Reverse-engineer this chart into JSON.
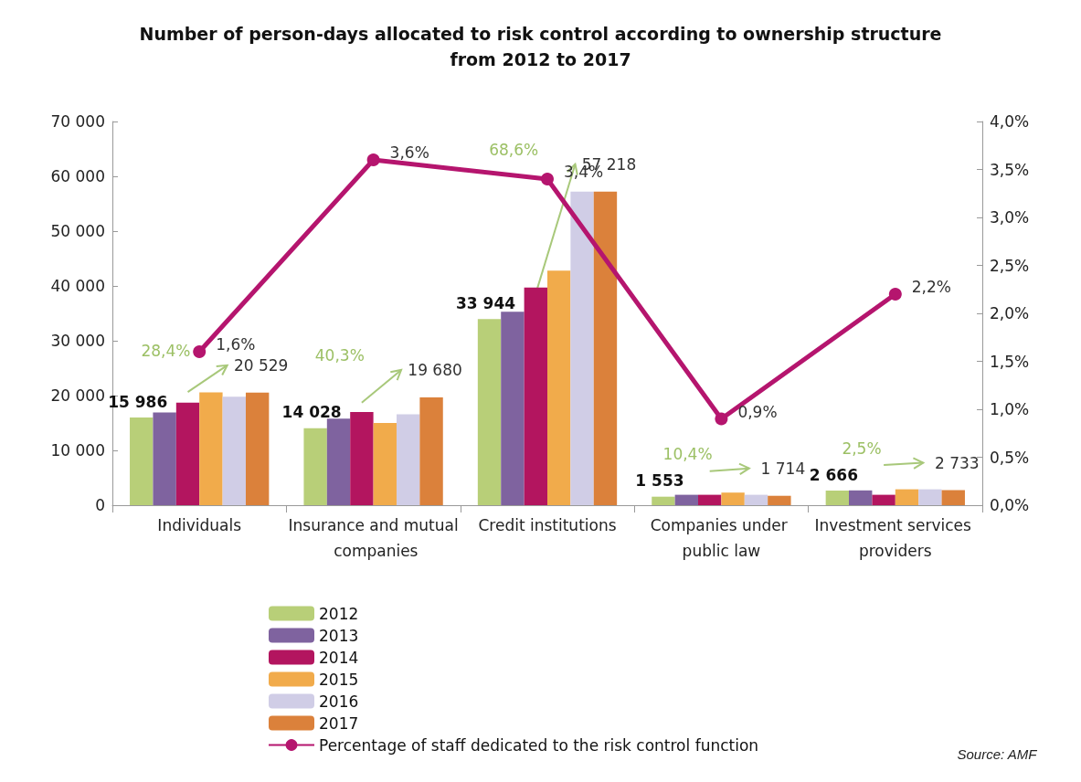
{
  "chart_data": {
    "type": "bar",
    "title": "Number of person-days allocated to risk control according to ownership structure\nfrom 2012 to 2017",
    "categories": [
      "Individuals",
      "Insurance and mutual companies",
      "Credit institutions",
      "Companies under public law",
      "Investment services providers"
    ],
    "series": [
      {
        "name": "2012",
        "color": "#b8cf78",
        "values": [
          15986,
          14028,
          33944,
          1553,
          2666
        ],
        "value_labels": [
          "15 986",
          "14 028",
          "33 944",
          "1 553",
          "2 666"
        ]
      },
      {
        "name": "2013",
        "color": "#7f639f",
        "values": [
          16900,
          15800,
          35300,
          1900,
          2700
        ]
      },
      {
        "name": "2014",
        "color": "#b3155f",
        "values": [
          18700,
          17000,
          39700,
          1900,
          1900
        ]
      },
      {
        "name": "2015",
        "color": "#f1ab4b",
        "values": [
          20600,
          15000,
          42800,
          2300,
          2900
        ]
      },
      {
        "name": "2016",
        "color": "#d0cde6",
        "values": [
          19800,
          16600,
          57200,
          1900,
          2900
        ]
      },
      {
        "name": "2017",
        "color": "#db813b",
        "values": [
          20529,
          19680,
          57218,
          1714,
          2733
        ],
        "value_labels": [
          "20 529",
          "19 680",
          "57 218",
          "1 714",
          "2 733"
        ]
      },
      {
        "name": "Percentage of staff dedicated to the risk control function",
        "type": "line",
        "axis": "y2",
        "color": "#b5156e",
        "values": [
          1.6,
          3.6,
          3.4,
          0.9,
          2.2
        ],
        "value_labels": [
          "1,6%",
          "3,6%",
          "3,4%",
          "0,9%",
          "2,2%"
        ]
      }
    ],
    "ylim": [
      0,
      70000
    ],
    "yticks": [
      {
        "value": 0,
        "label": "0"
      },
      {
        "value": 10000,
        "label": "10 000"
      },
      {
        "value": 20000,
        "label": "20 000"
      },
      {
        "value": 30000,
        "label": "30 000"
      },
      {
        "value": 40000,
        "label": "40 000"
      },
      {
        "value": 50000,
        "label": "50 000"
      },
      {
        "value": 60000,
        "label": "60 000"
      },
      {
        "value": 70000,
        "label": "70 000"
      }
    ],
    "y2lim": [
      0,
      4
    ],
    "y2ticks": [
      {
        "value": 0,
        "label": "0,0%"
      },
      {
        "value": 0.5,
        "label": "0,5%"
      },
      {
        "value": 1,
        "label": "1,0%"
      },
      {
        "value": 1.5,
        "label": "1,5%"
      },
      {
        "value": 2,
        "label": "2,0%"
      },
      {
        "value": 2.5,
        "label": "2,5%"
      },
      {
        "value": 3,
        "label": "3,0%"
      },
      {
        "value": 3.5,
        "label": "3,5%"
      },
      {
        "value": 4,
        "label": "4,0%"
      }
    ],
    "annotations": [
      "28,4%",
      "40,3%",
      "68,6%",
      "10,4%",
      "2,5%",
      "Source: AMF"
    ],
    "grid": false,
    "legend": "bottom left",
    "marker": "circle",
    "line_style": "solid"
  }
}
